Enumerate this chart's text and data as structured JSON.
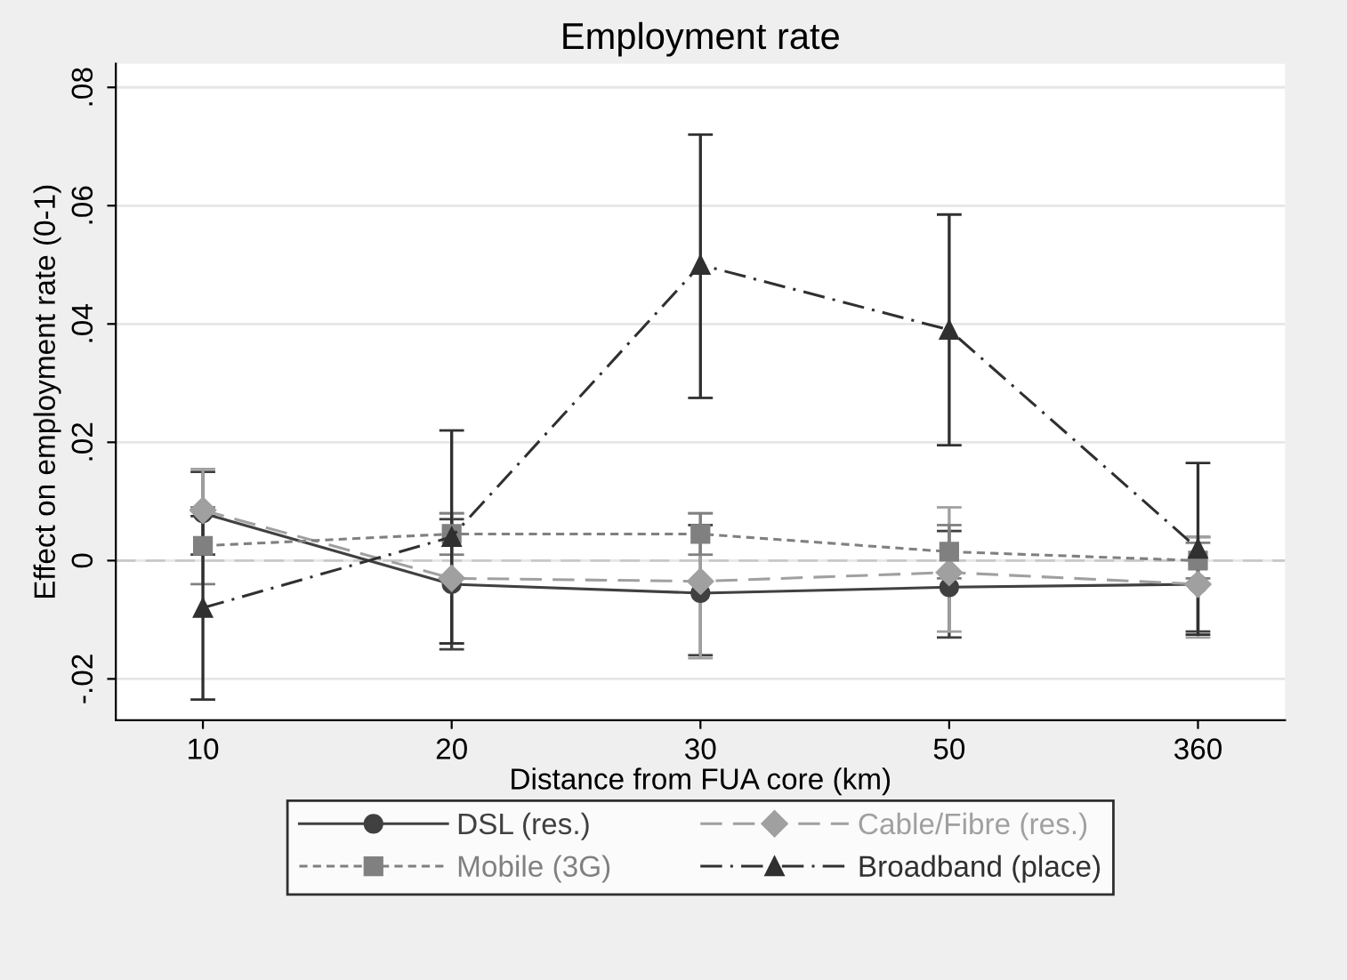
{
  "chart_data": {
    "type": "line",
    "title": "Employment rate",
    "xlabel": "Distance from FUA core (km)",
    "ylabel": "Effect on employment rate (0-1)",
    "categories": [
      "10",
      "20",
      "30",
      "50",
      "360"
    ],
    "series": [
      {
        "name": "DSL (res.)",
        "color": "#404040",
        "marker": "circle",
        "line_style": "solid",
        "values": [
          0.008,
          -0.004,
          -0.0055,
          -0.0045,
          -0.004
        ],
        "errors": [
          [
            0.001,
            0.015
          ],
          [
            -0.015,
            0.007
          ],
          [
            -0.016,
            0.006
          ],
          [
            -0.013,
            0.005
          ],
          [
            -0.012,
            0.004
          ]
        ]
      },
      {
        "name": "Cable/Fibre (res.)",
        "color": "#a0a0a0",
        "marker": "diamond",
        "line_style": "dashed",
        "values": [
          0.0085,
          -0.003,
          -0.0035,
          -0.002,
          -0.004
        ],
        "errors": [
          [
            0.0085,
            0.0155
          ],
          [
            -0.014,
            0.008
          ],
          [
            -0.0165,
            0.008
          ],
          [
            -0.012,
            0.009
          ],
          [
            -0.013,
            0.004
          ]
        ]
      },
      {
        "name": "Mobile (3G)",
        "color": "#808080",
        "marker": "square",
        "line_style": "dotted",
        "values": [
          0.0025,
          0.0045,
          0.0045,
          0.0015,
          0.0
        ],
        "errors": [
          [
            -0.004,
            0.009
          ],
          [
            0.001,
            0.008
          ],
          [
            0.001,
            0.008
          ],
          [
            -0.003,
            0.006
          ],
          [
            -0.003,
            0.003
          ]
        ]
      },
      {
        "name": "Broadband (place)",
        "color": "#303030",
        "marker": "triangle",
        "line_style": "dashdot",
        "values": [
          -0.008,
          0.004,
          0.05,
          0.039,
          0.002
        ],
        "errors": [
          [
            -0.0235,
            0.0075
          ],
          [
            -0.014,
            0.022
          ],
          [
            0.0275,
            0.072
          ],
          [
            0.0195,
            0.0585
          ],
          [
            -0.0125,
            0.0165
          ]
        ]
      }
    ],
    "ylim": [
      -0.027,
      0.084
    ],
    "yticks": [
      {
        "value": -0.02,
        "label": "-.02"
      },
      {
        "value": 0,
        "label": "0"
      },
      {
        "value": 0.02,
        "label": ".02"
      },
      {
        "value": 0.04,
        "label": ".04"
      },
      {
        "value": 0.06,
        "label": ".06"
      },
      {
        "value": 0.08,
        "label": ".08"
      }
    ],
    "ref_lines": [
      {
        "axis": "y",
        "value": 0,
        "color": "#c8c8c8",
        "line_style": "dashed"
      }
    ],
    "grid": "y",
    "legend": "bottom"
  }
}
